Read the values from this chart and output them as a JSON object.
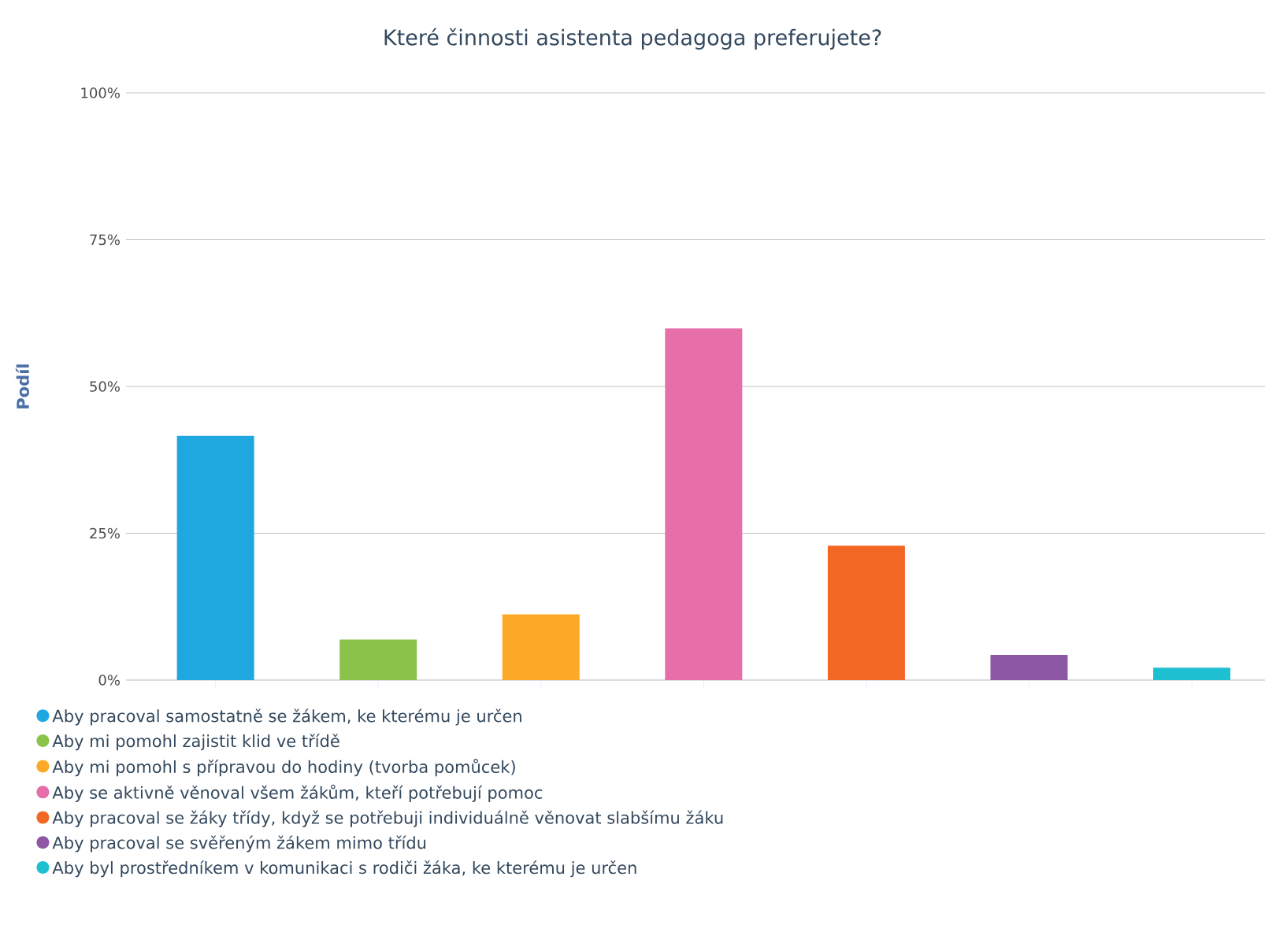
{
  "chart_data": {
    "type": "bar",
    "title": "Které činnosti asistenta pedagoga preferujete?",
    "ylabel": "Podíl",
    "categories": [
      null,
      null,
      null,
      null,
      null,
      null,
      null
    ],
    "series": [
      {
        "name": "Aby pracoval samostatně se žákem, ke kterému je určen",
        "color": "#1fa8e0",
        "values": [
          41.6,
          null,
          null,
          null,
          null,
          null,
          null
        ]
      },
      {
        "name": "Aby mi pomohl zajistit klid ve třídě",
        "color": "#8bc34a",
        "values": [
          null,
          6.9,
          null,
          null,
          null,
          null,
          null
        ]
      },
      {
        "name": "Aby mi pomohl s přípravou do hodiny (tvorba pomůcek)",
        "color": "#fba926",
        "values": [
          null,
          null,
          11.2,
          null,
          null,
          null,
          null
        ]
      },
      {
        "name": "Aby se aktivně věnoval všem žákům, kteří potřebují pomoc",
        "color": "#e66fa9",
        "values": [
          null,
          null,
          null,
          59.9,
          null,
          null,
          null
        ]
      },
      {
        "name": "Aby pracoval se žáky třídy, když se potřebuji individuálně věnovat slabšímu žáku",
        "color": "#f26724",
        "values": [
          null,
          null,
          null,
          null,
          22.9,
          null,
          null
        ]
      },
      {
        "name": "Aby pracoval se svěřeným žákem mimo třídu",
        "color": "#8e57a6",
        "values": [
          null,
          null,
          null,
          null,
          null,
          4.3,
          null
        ]
      },
      {
        "name": "Aby byl prostředníkem v komunikaci s rodiči žáka, ke kterému je určen",
        "color": "#1ebfd0",
        "values": [
          null,
          null,
          null,
          null,
          null,
          null,
          2.1
        ]
      }
    ],
    "ylim": [
      0,
      100
    ],
    "yticks": [
      {
        "value": 0,
        "label": "0%"
      },
      {
        "value": 25,
        "label": "25%"
      },
      {
        "value": 50,
        "label": "50%"
      },
      {
        "value": 75,
        "label": "75%"
      },
      {
        "value": 100,
        "label": "100%"
      }
    ],
    "grid": "y",
    "legend": "bottom"
  }
}
